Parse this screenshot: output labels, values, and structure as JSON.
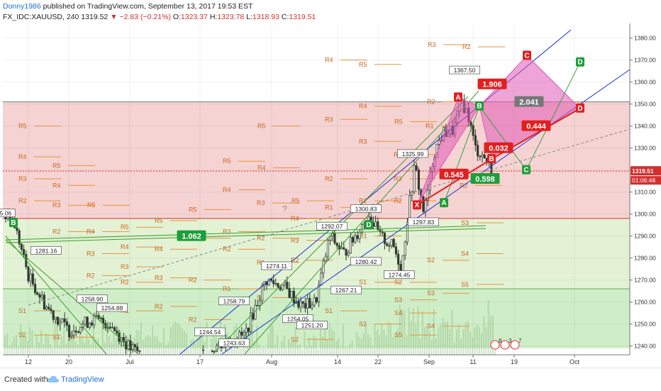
{
  "header": {
    "author": "Donny1986",
    "published_text": "published on TradingView.com, September 13, 2017 19:53 EST",
    "symbol": "FX_IDC:XAUUSD, 240",
    "last": "1319.52",
    "change": "−2.83 (−0.21%)",
    "o_label": "O:",
    "o_value": "1323.37",
    "h_label": "H:",
    "h_value": "1323.78",
    "l_label": "L:",
    "l_value": "1318.93",
    "c_label": "C:",
    "c_value": "1319.51"
  },
  "footer": {
    "created_with": "Created with",
    "brand": "TradingView"
  },
  "colors": {
    "candle": "#2e3b2e",
    "red_zone": "#f6d3d3",
    "green_zone": "#e3f2d5",
    "green_zone2": "#cfeec8",
    "pivot_text": "#c8661a",
    "pivot_line": "#e8913d",
    "pattern_fill": "#e05ab5",
    "channel_blue": "#1a2fd6",
    "channel_green": "#3c9c2c",
    "red_label": "#e02020",
    "green_label": "#1e9e3a"
  },
  "chart_data": {
    "type": "candlestick",
    "yaxis": {
      "min": 1236,
      "max": 1386,
      "ticks": [
        1240,
        1250,
        1260,
        1270,
        1280,
        1290,
        1300,
        1310,
        1320,
        1330,
        1340,
        1350,
        1360,
        1370,
        1380
      ]
    },
    "xaxis": {
      "ticks": [
        "12",
        "20",
        "Jul",
        "17",
        "Aug",
        "14",
        "22",
        "Sep",
        "11",
        "19",
        "Oct"
      ]
    },
    "last_price_label": "1319.51",
    "countdown_label": "01:06:48",
    "zones": [
      {
        "from": 1298,
        "to": 1351,
        "kind": "resistance"
      },
      {
        "from": 1266,
        "to": 1298,
        "kind": "range"
      },
      {
        "from": 1239,
        "to": 1266,
        "kind": "support"
      }
    ],
    "price_labels": [
      {
        "text": "1367.50",
        "x": "Sep 10",
        "y": 1365
      },
      {
        "text": "1325.99",
        "x": "Aug 29",
        "y": 1327
      },
      {
        "text": "1300.83",
        "x": "Aug 18",
        "y": 1302
      },
      {
        "text": "1297.83",
        "x": "Aug 31",
        "y": 1296
      },
      {
        "text": "1292.07",
        "x": "Aug 14",
        "y": 1294
      },
      {
        "text": "1280.42",
        "x": "Aug 18",
        "y": 1278
      },
      {
        "text": "1281.16",
        "x": "Jun 17",
        "y": 1283
      },
      {
        "text": "1274.11",
        "x": "Aug 1",
        "y": 1276
      },
      {
        "text": "1274.45",
        "x": "Aug 24",
        "y": 1272
      },
      {
        "text": "1267.21",
        "x": "Aug 15",
        "y": 1265
      },
      {
        "text": "1258.79",
        "x": "Jul 24",
        "y": 1260
      },
      {
        "text": "1258.90",
        "x": "Jun 26",
        "y": 1261
      },
      {
        "text": "1254.88",
        "x": "Jun 28",
        "y": 1257
      },
      {
        "text": "1254.05",
        "x": "Aug 8",
        "y": 1252
      },
      {
        "text": "1251.20",
        "x": "Aug 9",
        "y": 1249
      },
      {
        "text": "1244.54",
        "x": "Jul 14",
        "y": 1246
      },
      {
        "text": "1243.63",
        "x": "Jul 24",
        "y": 1241
      },
      {
        "text": "5.06",
        "x": "Jun 7",
        "y": 1300
      }
    ],
    "pivots": [
      {
        "t": "R3",
        "x": 613,
        "y": 1377
      },
      {
        "t": "R2",
        "x": 662,
        "y": 1376
      },
      {
        "t": "R4",
        "x": 468,
        "y": 1370
      },
      {
        "t": "R5",
        "x": 516,
        "y": 1368
      },
      {
        "t": "R2",
        "x": 612,
        "y": 1351
      },
      {
        "t": "R4",
        "x": 516,
        "y": 1349
      },
      {
        "t": "R3",
        "x": 468,
        "y": 1343
      },
      {
        "t": "R5",
        "x": 566,
        "y": 1342
      },
      {
        "t": "R1",
        "x": 610,
        "y": 1340
      },
      {
        "t": "R5",
        "x": 36,
        "y": 1340
      },
      {
        "t": "R5",
        "x": 373,
        "y": 1340
      },
      {
        "t": "R3",
        "x": 516,
        "y": 1333
      },
      {
        "t": "R4",
        "x": 36,
        "y": 1326
      },
      {
        "t": "R5",
        "x": 324,
        "y": 1324
      },
      {
        "t": "R4",
        "x": 565,
        "y": 1327
      },
      {
        "t": "R5",
        "x": 84,
        "y": 1322
      },
      {
        "t": "R4",
        "x": 373,
        "y": 1321
      },
      {
        "t": "R3",
        "x": 36,
        "y": 1316
      },
      {
        "t": "R2",
        "x": 468,
        "y": 1316
      },
      {
        "t": "R4",
        "x": 84,
        "y": 1313
      },
      {
        "t": "R3",
        "x": 565,
        "y": 1316
      },
      {
        "t": "R2",
        "x": 658,
        "y": 1313
      },
      {
        "t": "R4",
        "x": 324,
        "y": 1311
      },
      {
        "t": "R2",
        "x": 36,
        "y": 1306
      },
      {
        "t": "R2",
        "x": 516,
        "y": 1306
      },
      {
        "t": "R3",
        "x": 84,
        "y": 1304
      },
      {
        "t": "R5",
        "x": 133,
        "y": 1304
      },
      {
        "t": "R3",
        "x": 372,
        "y": 1305
      },
      {
        "t": "R5",
        "x": 421,
        "y": 1306
      },
      {
        "t": "R1",
        "x": 468,
        "y": 1303
      },
      {
        "t": "R5",
        "x": 276,
        "y": 1302
      },
      {
        "t": "R2",
        "x": 565,
        "y": 1306
      },
      {
        "t": "R5",
        "x": 228,
        "y": 1297
      },
      {
        "t": "R4",
        "x": 420,
        "y": 1298
      },
      {
        "t": "S3",
        "x": 660,
        "y": 1296
      },
      {
        "t": "R5",
        "x": 180,
        "y": 1294
      },
      {
        "t": "R2",
        "x": 84,
        "y": 1292
      },
      {
        "t": "R4",
        "x": 132,
        "y": 1292
      },
      {
        "t": "R3",
        "x": 324,
        "y": 1292
      },
      {
        "t": "R4",
        "x": 276,
        "y": 1289
      },
      {
        "t": "R2",
        "x": 372,
        "y": 1289
      },
      {
        "t": "R3",
        "x": 420,
        "y": 1288
      },
      {
        "t": "R1",
        "x": 516,
        "y": 1290
      },
      {
        "t": "R4",
        "x": 180,
        "y": 1285
      },
      {
        "t": "R4",
        "x": 228,
        "y": 1284
      },
      {
        "t": "R2",
        "x": 324,
        "y": 1284
      },
      {
        "t": "R3",
        "x": 132,
        "y": 1282
      },
      {
        "t": "S4",
        "x": 660,
        "y": 1282
      },
      {
        "t": "R1",
        "x": 372,
        "y": 1278
      },
      {
        "t": "R2",
        "x": 420,
        "y": 1279
      },
      {
        "t": "S2",
        "x": 612,
        "y": 1279
      },
      {
        "t": "R3",
        "x": 180,
        "y": 1276
      },
      {
        "t": "R2",
        "x": 132,
        "y": 1272
      },
      {
        "t": "R3",
        "x": 228,
        "y": 1271
      },
      {
        "t": "R2",
        "x": 180,
        "y": 1269
      },
      {
        "t": "R2",
        "x": 276,
        "y": 1270
      },
      {
        "t": "S1",
        "x": 516,
        "y": 1269
      },
      {
        "t": "S2",
        "x": 566,
        "y": 1269
      },
      {
        "t": "S5",
        "x": 660,
        "y": 1268
      },
      {
        "t": "R1",
        "x": 324,
        "y": 1266
      },
      {
        "t": "S3",
        "x": 612,
        "y": 1264
      },
      {
        "t": "S1",
        "x": 372,
        "y": 1262
      },
      {
        "t": "S3",
        "x": 566,
        "y": 1261
      },
      {
        "t": "R2",
        "x": 228,
        "y": 1258
      },
      {
        "t": "S1",
        "x": 36,
        "y": 1256
      },
      {
        "t": "S1",
        "x": 468,
        "y": 1256
      },
      {
        "t": "R1",
        "x": 180,
        "y": 1256
      },
      {
        "t": "R2",
        "x": 276,
        "y": 1252
      },
      {
        "t": "S4",
        "x": 566,
        "y": 1255
      },
      {
        "t": "S2",
        "x": 516,
        "y": 1250
      },
      {
        "t": "S4",
        "x": 612,
        "y": 1249
      },
      {
        "t": "S5",
        "x": 566,
        "y": 1245
      },
      {
        "t": "S1",
        "x": 84,
        "y": 1244
      },
      {
        "t": "S2",
        "x": 36,
        "y": 1245
      },
      {
        "t": "S2",
        "x": 420,
        "y": 1243
      }
    ],
    "annotations": [
      {
        "t": "X",
        "kind": "red",
        "x": 588,
        "y": 1304
      },
      {
        "t": "A",
        "kind": "red",
        "x": 646,
        "y": 1353
      },
      {
        "t": "B",
        "kind": "green",
        "x": 676,
        "y": 1349
      },
      {
        "t": "C",
        "kind": "red",
        "x": 743,
        "y": 1372
      },
      {
        "t": "D",
        "kind": "green",
        "x": 818,
        "y": 1369
      },
      {
        "t": "D",
        "kind": "red",
        "x": 818,
        "y": 1348
      },
      {
        "t": "C",
        "kind": "green",
        "x": 742,
        "y": 1320
      },
      {
        "t": "A",
        "kind": "green",
        "x": 626,
        "y": 1305
      },
      {
        "t": "B",
        "kind": "red",
        "x": 693,
        "y": 1325
      },
      {
        "t": "B",
        "kind": "green",
        "x": 19,
        "y": 1296
      },
      {
        "t": "D",
        "kind": "green",
        "x": 520,
        "y": 1295
      }
    ],
    "ratios": [
      {
        "t": "1.906",
        "kind": "red",
        "x": 694,
        "y": 1359
      },
      {
        "t": "2.041",
        "kind": "grey",
        "x": 746,
        "y": 1351
      },
      {
        "t": "0.444",
        "kind": "red",
        "x": 756,
        "y": 1340
      },
      {
        "t": "0.032",
        "kind": "red",
        "x": 703,
        "y": 1330
      },
      {
        "t": "0.545",
        "kind": "red",
        "x": 640,
        "y": 1318
      },
      {
        "t": "0.598",
        "kind": "green",
        "x": 684,
        "y": 1316
      },
      {
        "t": "1.062",
        "kind": "green",
        "x": 270,
        "y": 1290
      }
    ],
    "misc_marks": [
      "?"
    ],
    "event_flags": [
      {
        "t": "8"
      },
      {
        "t": "3"
      },
      {
        "t": "7"
      }
    ]
  }
}
